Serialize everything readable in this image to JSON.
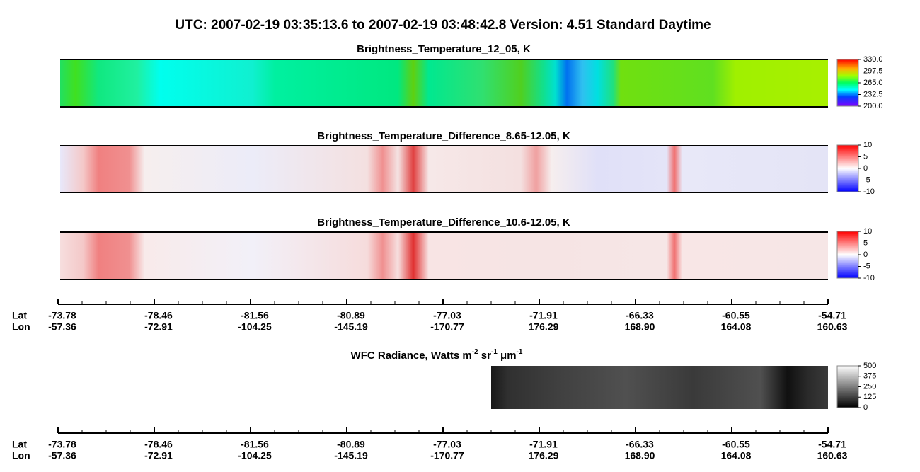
{
  "title": "UTC:  2007-02-19   03:35:13.6  to  2007-02-19   03:48:42.8    Version: 4.51  Standard Daytime",
  "panels": [
    {
      "title": "Brightness_Temperature_12_05, K",
      "colorbar": {
        "lim": [
          200,
          330
        ],
        "ticks": [
          {
            "value": 200,
            "label": "200.0"
          },
          232.5,
          {
            "value": 265,
            "label": "265.0"
          },
          297.5,
          {
            "value": 330,
            "label": "330.0"
          }
        ]
      }
    },
    {
      "title": "Brightness_Temperature_Difference_8.65-12.05, K",
      "colorbar": {
        "lim": [
          -10,
          10
        ],
        "ticks": [
          -10,
          -5,
          0,
          5,
          10
        ]
      }
    },
    {
      "title": "Brightness_Temperature_Difference_10.6-12.05, K",
      "colorbar": {
        "lim": [
          -10,
          10
        ],
        "ticks": [
          -10,
          -5,
          0,
          5,
          10
        ]
      }
    },
    {
      "title_parts": [
        "WFC Radiance, Watts m",
        "-2",
        " sr",
        "-1",
        " μm",
        "-1"
      ],
      "colorbar": {
        "lim": [
          0,
          500
        ],
        "ticks": [
          0,
          125,
          250,
          375,
          500
        ]
      }
    }
  ],
  "axes": [
    {
      "lat_label": "Lat",
      "lon_label": "Lon",
      "lat": [
        "-73.78",
        "-78.46",
        "-81.56",
        "-80.89",
        "-77.03",
        "-71.91",
        "-66.33",
        "-60.55",
        "-54.71"
      ],
      "lon": [
        "-57.36",
        "-72.91",
        "-104.25",
        "-145.19",
        "-170.77",
        "176.29",
        "168.90",
        "164.08",
        "160.63"
      ]
    },
    {
      "lat_label": "Lat",
      "lon_label": "Lon",
      "lat": [
        "-73.78",
        "-78.46",
        "-81.56",
        "-80.89",
        "-77.03",
        "-71.91",
        "-66.33",
        "-60.55",
        "-54.71"
      ],
      "lon": [
        "-57.36",
        "-72.91",
        "-104.25",
        "-145.19",
        "-170.77",
        "176.29",
        "168.90",
        "164.08",
        "160.63"
      ]
    }
  ]
}
